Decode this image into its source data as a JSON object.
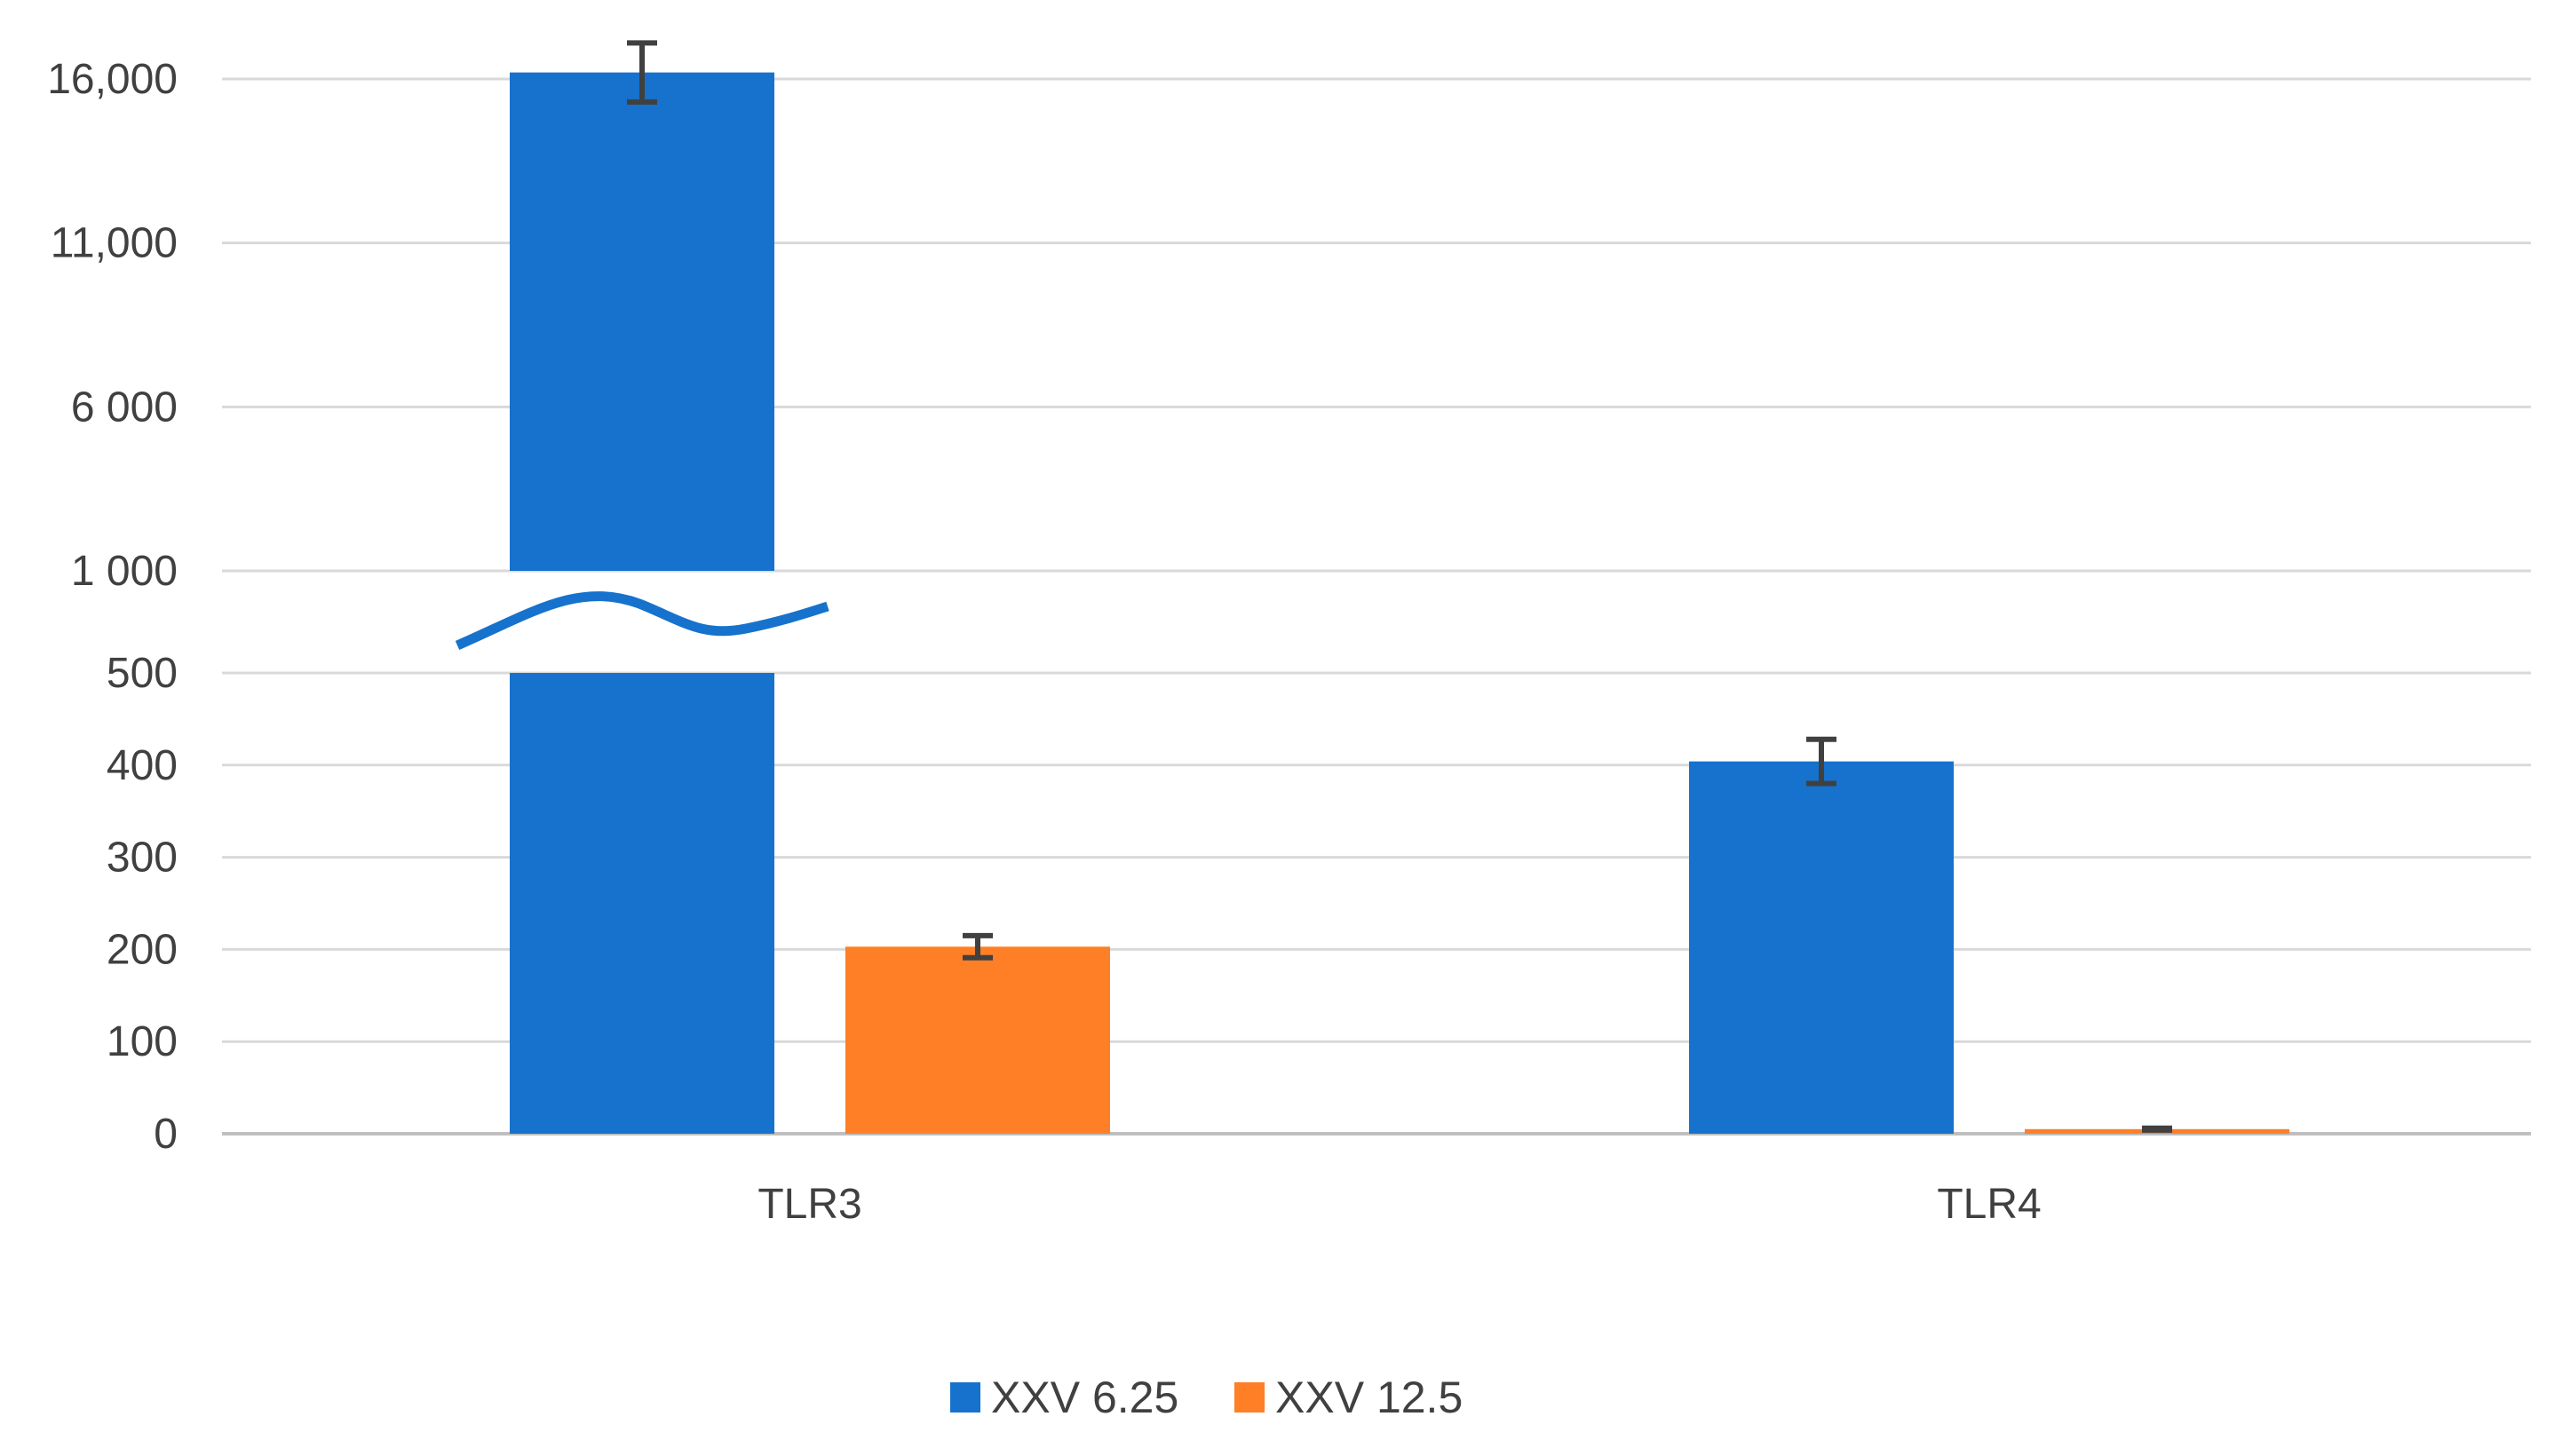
{
  "chart_data": {
    "type": "bar",
    "title": "",
    "xlabel": "",
    "ylabel": "",
    "categories": [
      "TLR3",
      "TLR4"
    ],
    "series": [
      {
        "name": "XXV 6.25",
        "color": "#1672CC",
        "values": [
          16200,
          404
        ],
        "errors": [
          900,
          24
        ]
      },
      {
        "name": "XXV 12.5",
        "color": "#FF7F27",
        "values": [
          203,
          5
        ],
        "errors": [
          12,
          1
        ]
      }
    ],
    "y_axis": {
      "broken": true,
      "lower_ticks": [
        {
          "value": 0,
          "label": "0"
        },
        {
          "value": 100,
          "label": "100"
        },
        {
          "value": 200,
          "label": "200"
        },
        {
          "value": 300,
          "label": "300"
        },
        {
          "value": 400,
          "label": "400"
        },
        {
          "value": 500,
          "label": "500"
        }
      ],
      "upper_ticks": [
        {
          "value": 1000,
          "label": "1 000"
        },
        {
          "value": 6000,
          "label": "6 000"
        },
        {
          "value": 11000,
          "label": "11,000"
        },
        {
          "value": 16000,
          "label": "16,000"
        }
      ],
      "ylim": [
        0,
        16000
      ]
    },
    "grid": true,
    "legend_position": "bottom-center"
  }
}
